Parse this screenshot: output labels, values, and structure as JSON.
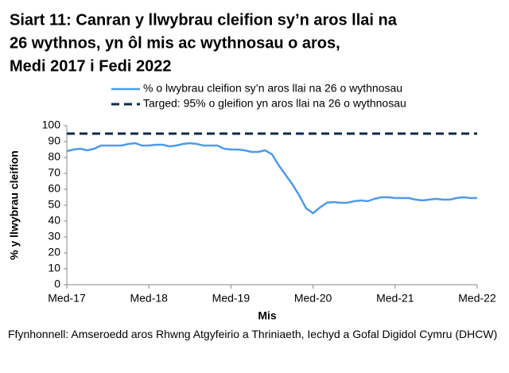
{
  "chart_data": {
    "type": "line",
    "title": [
      "Siart 11: Canran y llwybrau cleifion sy’n aros llai na",
      "26 wythnos, yn ôl mis ac wythnosau o aros,",
      "Medi 2017 i Fedi 2022"
    ],
    "x_label": "Mis",
    "y_label": "% y llwybrau cleifion",
    "source": "Ffynhonnell: Amseroedd aros Rhwng Atgyfeirio a Thriniaeth, Iechyd a Gofal Digidol Cymru (DHCW)",
    "categories": [
      "Med-17",
      null,
      null,
      null,
      null,
      null,
      null,
      null,
      null,
      null,
      null,
      null,
      "Med-18",
      null,
      null,
      null,
      null,
      null,
      null,
      null,
      null,
      null,
      null,
      null,
      "Med-19",
      null,
      null,
      null,
      null,
      null,
      null,
      null,
      null,
      null,
      null,
      null,
      "Med-20",
      null,
      null,
      null,
      null,
      null,
      null,
      null,
      null,
      null,
      null,
      null,
      "Med-21",
      null,
      null,
      null,
      null,
      null,
      null,
      null,
      null,
      null,
      null,
      null,
      "Med-22"
    ],
    "series": [
      {
        "name": "% o lwybrau cleifion sy’n aros llai na 26 o wythnosau",
        "color": "#4f9be8",
        "style": "solid",
        "values": [
          84,
          85,
          85.5,
          84.5,
          85.5,
          87.5,
          87.5,
          87.5,
          87.5,
          88.5,
          89,
          87.5,
          87.5,
          88,
          88,
          87,
          87.5,
          88.5,
          89,
          88.5,
          87.5,
          87.5,
          87.5,
          85.5,
          85,
          85,
          84.5,
          83.5,
          83.5,
          84.5,
          82,
          75,
          69,
          63,
          56,
          48,
          45,
          48.5,
          51.5,
          52,
          51.5,
          51.5,
          52.5,
          53,
          52.5,
          54,
          55,
          55,
          54.5,
          54.5,
          54.5,
          53.5,
          53,
          53.5,
          54,
          53.5,
          53.5,
          54.5,
          55,
          54.5,
          54.5
        ]
      },
      {
        "name": "Targed: 95% o gleifion yn aros llai na 26 o wythnosau",
        "color": "#0e2a47",
        "style": "dashed",
        "values": [
          95,
          95,
          95,
          95,
          95,
          95,
          95,
          95,
          95,
          95,
          95,
          95,
          95,
          95,
          95,
          95,
          95,
          95,
          95,
          95,
          95,
          95,
          95,
          95,
          95,
          95,
          95,
          95,
          95,
          95,
          95,
          95,
          95,
          95,
          95,
          95,
          95,
          95,
          95,
          95,
          95,
          95,
          95,
          95,
          95,
          95,
          95,
          95,
          95,
          95,
          95,
          95,
          95,
          95,
          95,
          95,
          95,
          95,
          95,
          95,
          95
        ]
      }
    ],
    "ylim": [
      0,
      100
    ],
    "yticks": [
      0,
      10,
      20,
      30,
      40,
      50,
      60,
      70,
      80,
      90,
      100
    ],
    "grid": false
  }
}
